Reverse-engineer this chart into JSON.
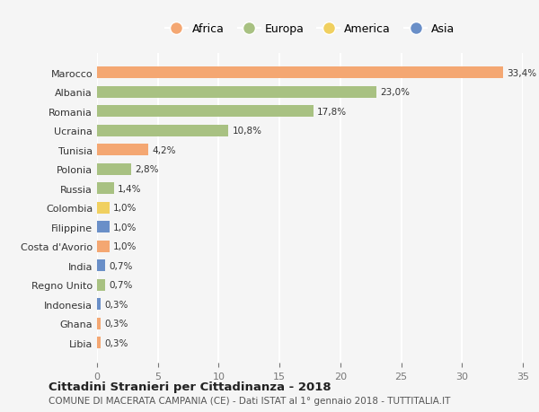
{
  "countries": [
    "Marocco",
    "Albania",
    "Romania",
    "Ucraina",
    "Tunisia",
    "Polonia",
    "Russia",
    "Colombia",
    "Filippine",
    "Costa d'Avorio",
    "India",
    "Regno Unito",
    "Indonesia",
    "Ghana",
    "Libia"
  ],
  "values": [
    33.4,
    23.0,
    17.8,
    10.8,
    4.2,
    2.8,
    1.4,
    1.0,
    1.0,
    1.0,
    0.7,
    0.7,
    0.3,
    0.3,
    0.3
  ],
  "labels": [
    "33,4%",
    "23,0%",
    "17,8%",
    "10,8%",
    "4,2%",
    "2,8%",
    "1,4%",
    "1,0%",
    "1,0%",
    "1,0%",
    "0,7%",
    "0,7%",
    "0,3%",
    "0,3%",
    "0,3%"
  ],
  "continents": [
    "Africa",
    "Europa",
    "Europa",
    "Europa",
    "Africa",
    "Europa",
    "Europa",
    "America",
    "Asia",
    "Africa",
    "Asia",
    "Europa",
    "Asia",
    "Africa",
    "Africa"
  ],
  "continent_colors": {
    "Africa": "#F4A772",
    "Europa": "#A8C182",
    "America": "#F0D060",
    "Asia": "#6A8FC8"
  },
  "legend_order": [
    "Africa",
    "Europa",
    "America",
    "Asia"
  ],
  "title": "Cittadini Stranieri per Cittadinanza - 2018",
  "subtitle": "COMUNE DI MACERATA CAMPANIA (CE) - Dati ISTAT al 1° gennaio 2018 - TUTTITALIA.IT",
  "xlim": [
    0,
    35
  ],
  "xticks": [
    0,
    5,
    10,
    15,
    20,
    25,
    30,
    35
  ],
  "background_color": "#f5f5f5",
  "grid_color": "#ffffff",
  "bar_height": 0.6
}
